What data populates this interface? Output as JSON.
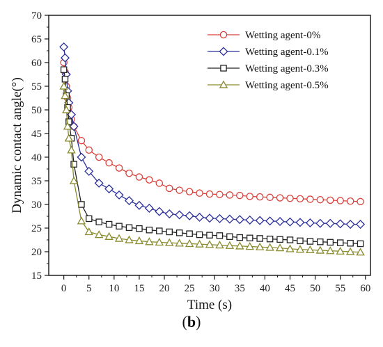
{
  "panel_label": {
    "open": "(",
    "letter": "b",
    "close": ")"
  },
  "chart_data": {
    "type": "line",
    "title": "",
    "xlabel": "Time (s)",
    "ylabel": "Dynamic contact angle(°)",
    "xlim": [
      -3,
      61
    ],
    "ylim": [
      15,
      70
    ],
    "xticks": [
      0,
      5,
      10,
      15,
      20,
      25,
      30,
      35,
      40,
      45,
      50,
      55,
      60
    ],
    "yticks": [
      15,
      20,
      25,
      30,
      35,
      40,
      45,
      50,
      55,
      60,
      65,
      70
    ],
    "grid": false,
    "legend_position": "top-right",
    "x": [
      0,
      0.25,
      0.5,
      0.75,
      1,
      1.5,
      2,
      3.5,
      5,
      7,
      9,
      11,
      13,
      15,
      17,
      19,
      21,
      23,
      25,
      27,
      29,
      31,
      33,
      35,
      37,
      39,
      41,
      43,
      45,
      47,
      49,
      51,
      53,
      55,
      57,
      59
    ],
    "series": [
      {
        "name": "Wetting agent-0%",
        "color": "#d9403a",
        "marker": "circle",
        "values": [
          60.0,
          58.0,
          55.0,
          52.5,
          50.5,
          48.0,
          46.5,
          43.5,
          41.5,
          40.0,
          38.8,
          37.7,
          36.6,
          35.8,
          35.2,
          34.5,
          33.4,
          33.0,
          32.7,
          32.4,
          32.2,
          32.1,
          32.0,
          31.9,
          31.7,
          31.6,
          31.5,
          31.4,
          31.3,
          31.2,
          31.1,
          31.0,
          30.9,
          30.8,
          30.7,
          30.6
        ]
      },
      {
        "name": "Wetting agent-0.1%",
        "color": "#2b2f9a",
        "marker": "diamond",
        "values": [
          63.3,
          61.0,
          57.5,
          54.0,
          51.5,
          49.0,
          46.5,
          40.0,
          37.0,
          34.5,
          33.3,
          32.0,
          30.8,
          29.8,
          29.2,
          28.5,
          28.0,
          27.8,
          27.6,
          27.3,
          27.1,
          27.0,
          26.9,
          26.8,
          26.7,
          26.6,
          26.5,
          26.4,
          26.3,
          26.2,
          26.1,
          26.0,
          26.0,
          25.9,
          25.8,
          25.8
        ]
      },
      {
        "name": "Wetting agent-0.3%",
        "color": "#222222",
        "marker": "square",
        "values": [
          58.5,
          56.5,
          53.0,
          50.5,
          47.5,
          44.0,
          38.5,
          30.0,
          27.0,
          26.3,
          25.8,
          25.4,
          25.1,
          24.9,
          24.6,
          24.4,
          24.2,
          24.0,
          23.8,
          23.6,
          23.5,
          23.4,
          23.2,
          23.0,
          22.9,
          22.8,
          22.7,
          22.6,
          22.5,
          22.3,
          22.2,
          22.1,
          22.0,
          21.9,
          21.8,
          21.7
        ]
      },
      {
        "name": "Wetting agent-0.5%",
        "color": "#8a8a2e",
        "marker": "triangle",
        "values": [
          55.0,
          53.0,
          50.0,
          46.5,
          44.0,
          41.5,
          35.0,
          26.5,
          24.2,
          23.6,
          23.2,
          22.8,
          22.5,
          22.3,
          22.1,
          22.0,
          21.9,
          21.8,
          21.7,
          21.6,
          21.5,
          21.4,
          21.3,
          21.2,
          21.1,
          21.0,
          20.9,
          20.8,
          20.6,
          20.5,
          20.4,
          20.3,
          20.2,
          20.1,
          20.0,
          19.9
        ]
      }
    ]
  }
}
